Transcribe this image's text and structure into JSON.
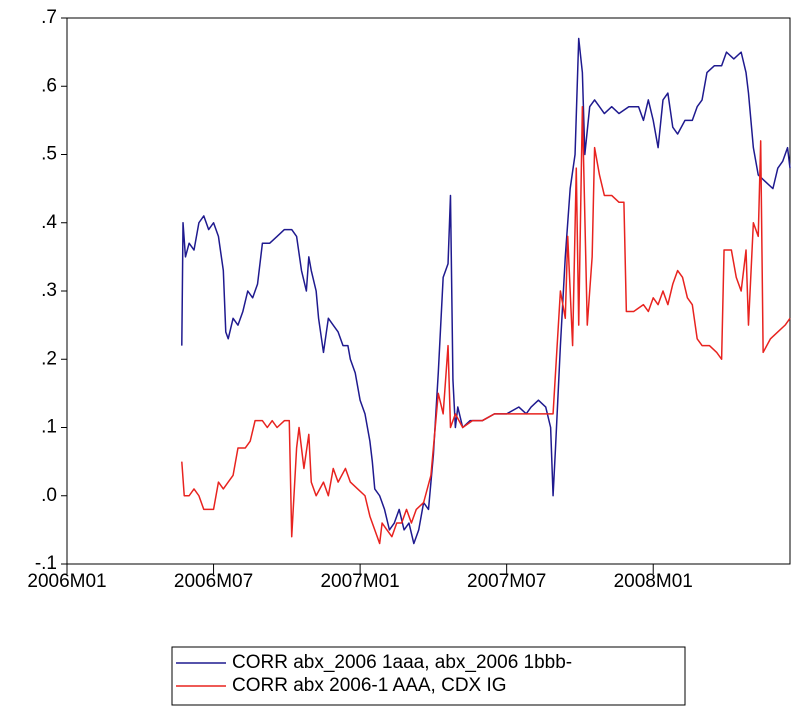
{
  "chart_data": {
    "type": "line",
    "xlim": [
      0,
      29.6
    ],
    "xticks": [
      {
        "value": 0,
        "label": "2006M01"
      },
      {
        "value": 6,
        "label": "2006M07"
      },
      {
        "value": 12,
        "label": "2007M01"
      },
      {
        "value": 18,
        "label": "2007M07"
      },
      {
        "value": 24,
        "label": "2008M01"
      }
    ],
    "ylim": [
      -0.1,
      0.7
    ],
    "yticks": [
      {
        "value": -0.1,
        "label": "-.1"
      },
      {
        "value": 0,
        "label": ".0"
      },
      {
        "value": 0.1,
        "label": ".1"
      },
      {
        "value": 0.2,
        "label": ".2"
      },
      {
        "value": 0.3,
        "label": ".3"
      },
      {
        "value": 0.4,
        "label": ".4"
      },
      {
        "value": 0.5,
        "label": ".5"
      },
      {
        "value": 0.6,
        "label": ".6"
      },
      {
        "value": 0.7,
        "label": ".7"
      }
    ],
    "series": [
      {
        "name": "CORR abx_2006 1aaa, abx_2006 1bbb-",
        "color": "#1f1a8f",
        "x": [
          4.7,
          4.75,
          4.85,
          5.0,
          5.2,
          5.4,
          5.6,
          5.8,
          6.0,
          6.2,
          6.4,
          6.5,
          6.6,
          6.8,
          7.0,
          7.2,
          7.4,
          7.6,
          7.8,
          8.0,
          8.3,
          8.6,
          8.9,
          9.2,
          9.4,
          9.6,
          9.8,
          9.9,
          10.0,
          10.2,
          10.3,
          10.5,
          10.7,
          10.9,
          11.1,
          11.3,
          11.5,
          11.6,
          11.8,
          12.0,
          12.2,
          12.4,
          12.5,
          12.6,
          12.8,
          13.0,
          13.2,
          13.4,
          13.6,
          13.8,
          14.0,
          14.2,
          14.4,
          14.6,
          14.8,
          15.0,
          15.2,
          15.4,
          15.6,
          15.7,
          15.8,
          15.9,
          16.0,
          16.2,
          16.5,
          17.0,
          17.5,
          18.0,
          18.5,
          18.8,
          19.0,
          19.3,
          19.6,
          19.8,
          19.9,
          20.0,
          20.2,
          20.4,
          20.6,
          20.8,
          20.95,
          21.1,
          21.2,
          21.4,
          21.6,
          21.8,
          22.0,
          22.3,
          22.6,
          23.0,
          23.4,
          23.6,
          23.8,
          24.0,
          24.2,
          24.4,
          24.6,
          24.8,
          25.0,
          25.3,
          25.6,
          25.8,
          26.0,
          26.2,
          26.5,
          26.8,
          27.0,
          27.3,
          27.6,
          27.8,
          27.9,
          28.1,
          28.3,
          28.6,
          28.9,
          29.1,
          29.3,
          29.5,
          29.6
        ],
        "values": [
          0.22,
          0.4,
          0.35,
          0.37,
          0.36,
          0.4,
          0.41,
          0.39,
          0.4,
          0.38,
          0.33,
          0.24,
          0.23,
          0.26,
          0.25,
          0.27,
          0.3,
          0.29,
          0.31,
          0.37,
          0.37,
          0.38,
          0.39,
          0.39,
          0.38,
          0.33,
          0.3,
          0.35,
          0.33,
          0.3,
          0.26,
          0.21,
          0.26,
          0.25,
          0.24,
          0.22,
          0.22,
          0.2,
          0.18,
          0.14,
          0.12,
          0.08,
          0.05,
          0.01,
          0.0,
          -0.02,
          -0.05,
          -0.04,
          -0.02,
          -0.05,
          -0.04,
          -0.07,
          -0.05,
          -0.01,
          -0.02,
          0.06,
          0.18,
          0.32,
          0.34,
          0.44,
          0.17,
          0.1,
          0.13,
          0.1,
          0.11,
          0.11,
          0.12,
          0.12,
          0.13,
          0.12,
          0.13,
          0.14,
          0.13,
          0.1,
          0.0,
          0.07,
          0.22,
          0.35,
          0.45,
          0.5,
          0.67,
          0.62,
          0.5,
          0.57,
          0.58,
          0.57,
          0.56,
          0.57,
          0.56,
          0.57,
          0.57,
          0.55,
          0.58,
          0.55,
          0.51,
          0.58,
          0.59,
          0.54,
          0.53,
          0.55,
          0.55,
          0.57,
          0.58,
          0.62,
          0.63,
          0.63,
          0.65,
          0.64,
          0.65,
          0.62,
          0.59,
          0.51,
          0.47,
          0.46,
          0.45,
          0.48,
          0.49,
          0.51,
          0.48
        ]
      },
      {
        "name": "CORR abx 2006-1 AAA, CDX IG",
        "color": "#e8231f",
        "x": [
          4.7,
          4.8,
          5.0,
          5.2,
          5.4,
          5.6,
          5.8,
          6.0,
          6.2,
          6.4,
          6.6,
          6.8,
          7.0,
          7.3,
          7.5,
          7.7,
          8.0,
          8.2,
          8.4,
          8.6,
          8.9,
          9.1,
          9.2,
          9.4,
          9.5,
          9.7,
          9.9,
          10.0,
          10.2,
          10.5,
          10.7,
          10.9,
          11.1,
          11.4,
          11.6,
          11.9,
          12.2,
          12.4,
          12.6,
          12.8,
          12.9,
          13.1,
          13.3,
          13.5,
          13.7,
          13.9,
          14.1,
          14.3,
          14.6,
          14.9,
          15.2,
          15.4,
          15.6,
          15.7,
          15.9,
          16.2,
          16.6,
          17.0,
          17.5,
          18.0,
          18.5,
          19.0,
          19.5,
          19.9,
          20.0,
          20.2,
          20.4,
          20.5,
          20.7,
          20.85,
          20.95,
          21.1,
          21.3,
          21.5,
          21.6,
          21.8,
          22.0,
          22.3,
          22.6,
          22.8,
          22.9,
          23.2,
          23.6,
          23.8,
          24.0,
          24.2,
          24.4,
          24.6,
          24.8,
          25.0,
          25.2,
          25.4,
          25.6,
          25.8,
          26.0,
          26.3,
          26.6,
          26.8,
          26.9,
          27.2,
          27.4,
          27.6,
          27.8,
          27.9,
          28.1,
          28.3,
          28.4,
          28.5,
          28.8,
          29.1,
          29.4,
          29.6
        ],
        "values": [
          0.05,
          0.0,
          0.0,
          0.01,
          0.0,
          -0.02,
          -0.02,
          -0.02,
          0.02,
          0.01,
          0.02,
          0.03,
          0.07,
          0.07,
          0.08,
          0.11,
          0.11,
          0.1,
          0.11,
          0.1,
          0.11,
          0.11,
          -0.06,
          0.07,
          0.1,
          0.04,
          0.09,
          0.02,
          0.0,
          0.02,
          0.0,
          0.04,
          0.02,
          0.04,
          0.02,
          0.01,
          0.0,
          -0.03,
          -0.05,
          -0.07,
          -0.04,
          -0.05,
          -0.06,
          -0.04,
          -0.04,
          -0.02,
          -0.04,
          -0.02,
          -0.01,
          0.03,
          0.15,
          0.12,
          0.22,
          0.1,
          0.12,
          0.1,
          0.11,
          0.11,
          0.12,
          0.12,
          0.12,
          0.12,
          0.12,
          0.12,
          0.18,
          0.3,
          0.26,
          0.38,
          0.22,
          0.48,
          0.25,
          0.57,
          0.25,
          0.35,
          0.51,
          0.47,
          0.44,
          0.44,
          0.43,
          0.43,
          0.27,
          0.27,
          0.28,
          0.27,
          0.29,
          0.28,
          0.3,
          0.28,
          0.31,
          0.33,
          0.32,
          0.29,
          0.28,
          0.23,
          0.22,
          0.22,
          0.21,
          0.2,
          0.36,
          0.36,
          0.32,
          0.3,
          0.36,
          0.25,
          0.4,
          0.38,
          0.52,
          0.21,
          0.23,
          0.24,
          0.25,
          0.26
        ]
      }
    ]
  }
}
